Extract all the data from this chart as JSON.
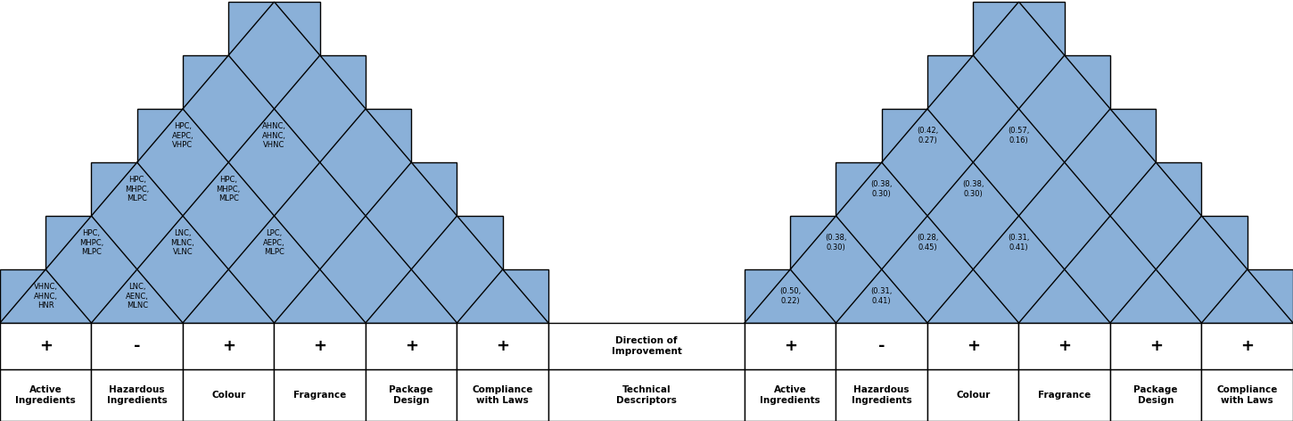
{
  "fig_width": 14.5,
  "fig_height": 4.72,
  "bg_color": "#ffffff",
  "fill_color": "#8ab0d8",
  "line_color": "#000000",
  "line_width": 1.0,
  "n_cols": 6,
  "left_labels": [
    "Active\nIngredients",
    "Hazardous\nIngredients",
    "Colour",
    "Fragrance",
    "Package\nDesign",
    "Compliance\nwith Laws"
  ],
  "left_signs": [
    "+",
    "-",
    "+",
    "+",
    "+",
    "+"
  ],
  "right_labels": [
    "Active\nIngredients",
    "Hazardous\nIngredients",
    "Colour",
    "Fragrance",
    "Package\nDesign",
    "Compliance\nwith Laws"
  ],
  "right_signs": [
    "+",
    "-",
    "+",
    "+",
    "+",
    "+"
  ],
  "center_sign_text": "Direction of\nImprovement",
  "center_label_text": "Technical\nDescriptors",
  "left_cells": [
    {
      "row": 0,
      "col": 0,
      "text": "VHNC,\nAHNC,\nHNR"
    },
    {
      "row": 0,
      "col": 1,
      "text": "LNC,\nAENC,\nMLNC"
    },
    {
      "row": 1,
      "col": 0,
      "text": "HPC,\nMHPC,\nMLPC"
    },
    {
      "row": 1,
      "col": 1,
      "text": "LNC,\nMLNC,\nVLNC"
    },
    {
      "row": 1,
      "col": 2,
      "text": "LPC,\nAEPC,\nMLPC"
    },
    {
      "row": 2,
      "col": 0,
      "text": "HPC,\nMHPC,\nMLPC"
    },
    {
      "row": 2,
      "col": 1,
      "text": "HPC,\nMHPC,\nMLPC"
    },
    {
      "row": 3,
      "col": 0,
      "text": "HPC,\nAEPC,\nVHPC"
    },
    {
      "row": 3,
      "col": 1,
      "text": "AHNC,\nAHNC,\nVHNC"
    }
  ],
  "right_cells": [
    {
      "row": 0,
      "col": 0,
      "text": "(0.50,\n0.22)"
    },
    {
      "row": 0,
      "col": 1,
      "text": "(0.31,\n0.41)"
    },
    {
      "row": 1,
      "col": 0,
      "text": "(0.38,\n0.30)"
    },
    {
      "row": 1,
      "col": 1,
      "text": "(0.28,\n0.45)"
    },
    {
      "row": 1,
      "col": 2,
      "text": "(0.31,\n0.41)"
    },
    {
      "row": 2,
      "col": 0,
      "text": "(0.38,\n0.30)"
    },
    {
      "row": 2,
      "col": 1,
      "text": "(0.38,\n0.30)"
    },
    {
      "row": 3,
      "col": 0,
      "text": "(0.42,\n0.27)"
    },
    {
      "row": 3,
      "col": 1,
      "text": "(0.57,\n0.16)"
    }
  ]
}
